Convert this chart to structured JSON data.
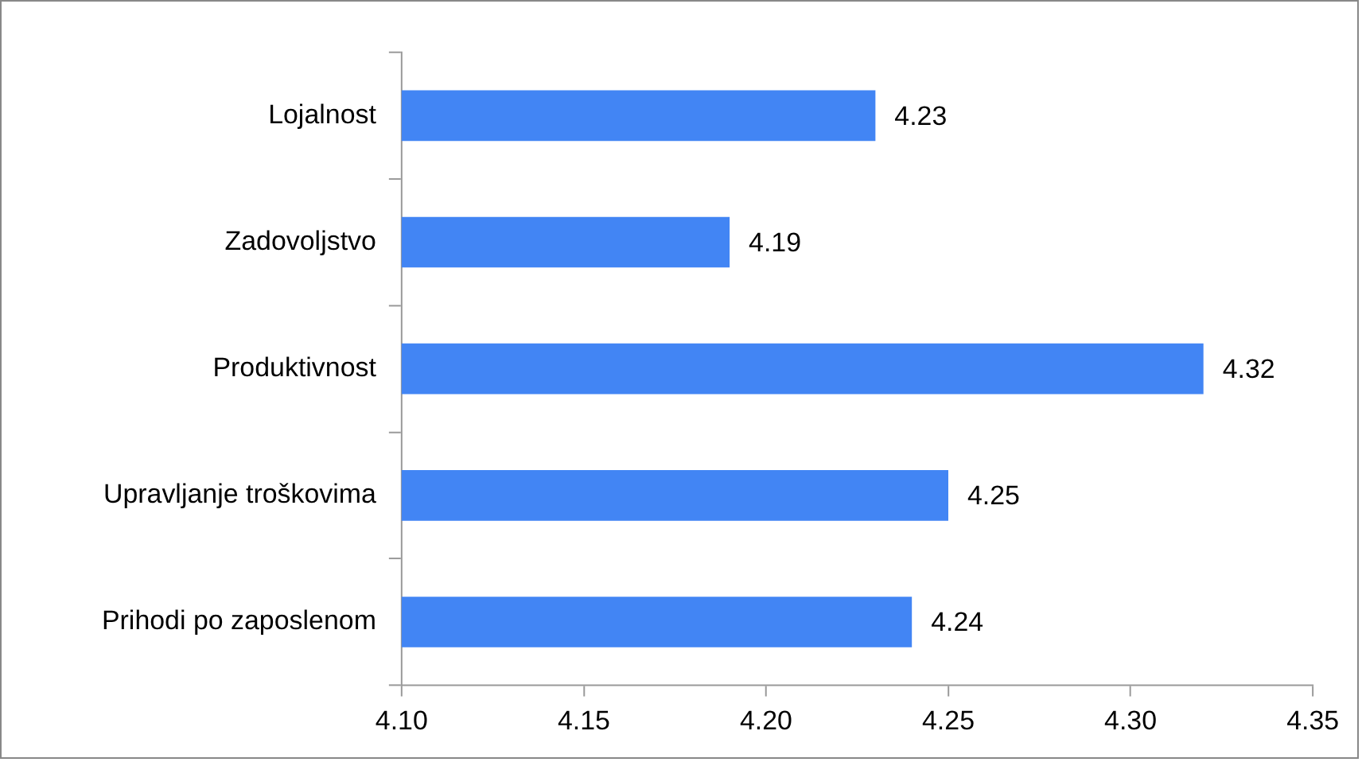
{
  "chart_data": {
    "type": "bar",
    "orientation": "horizontal",
    "categories": [
      "Lojalnost",
      "Zadovoljstvo",
      "Produktivnost",
      "Upravljanje troškovima",
      "Prihodi po zaposlenom"
    ],
    "values": [
      4.23,
      4.19,
      4.32,
      4.25,
      4.24
    ],
    "color": "#4285f4",
    "xlim": [
      4.1,
      4.35
    ],
    "xticks": [
      {
        "value": 4.1,
        "label": "4.10"
      },
      {
        "value": 4.15,
        "label": "4.15"
      },
      {
        "value": 4.2,
        "label": "4.20"
      },
      {
        "value": 4.25,
        "label": "4.25"
      },
      {
        "value": 4.3,
        "label": "4.30"
      },
      {
        "value": 4.35,
        "label": "4.35"
      }
    ],
    "data_labels": true,
    "grid": false,
    "legend": false
  }
}
